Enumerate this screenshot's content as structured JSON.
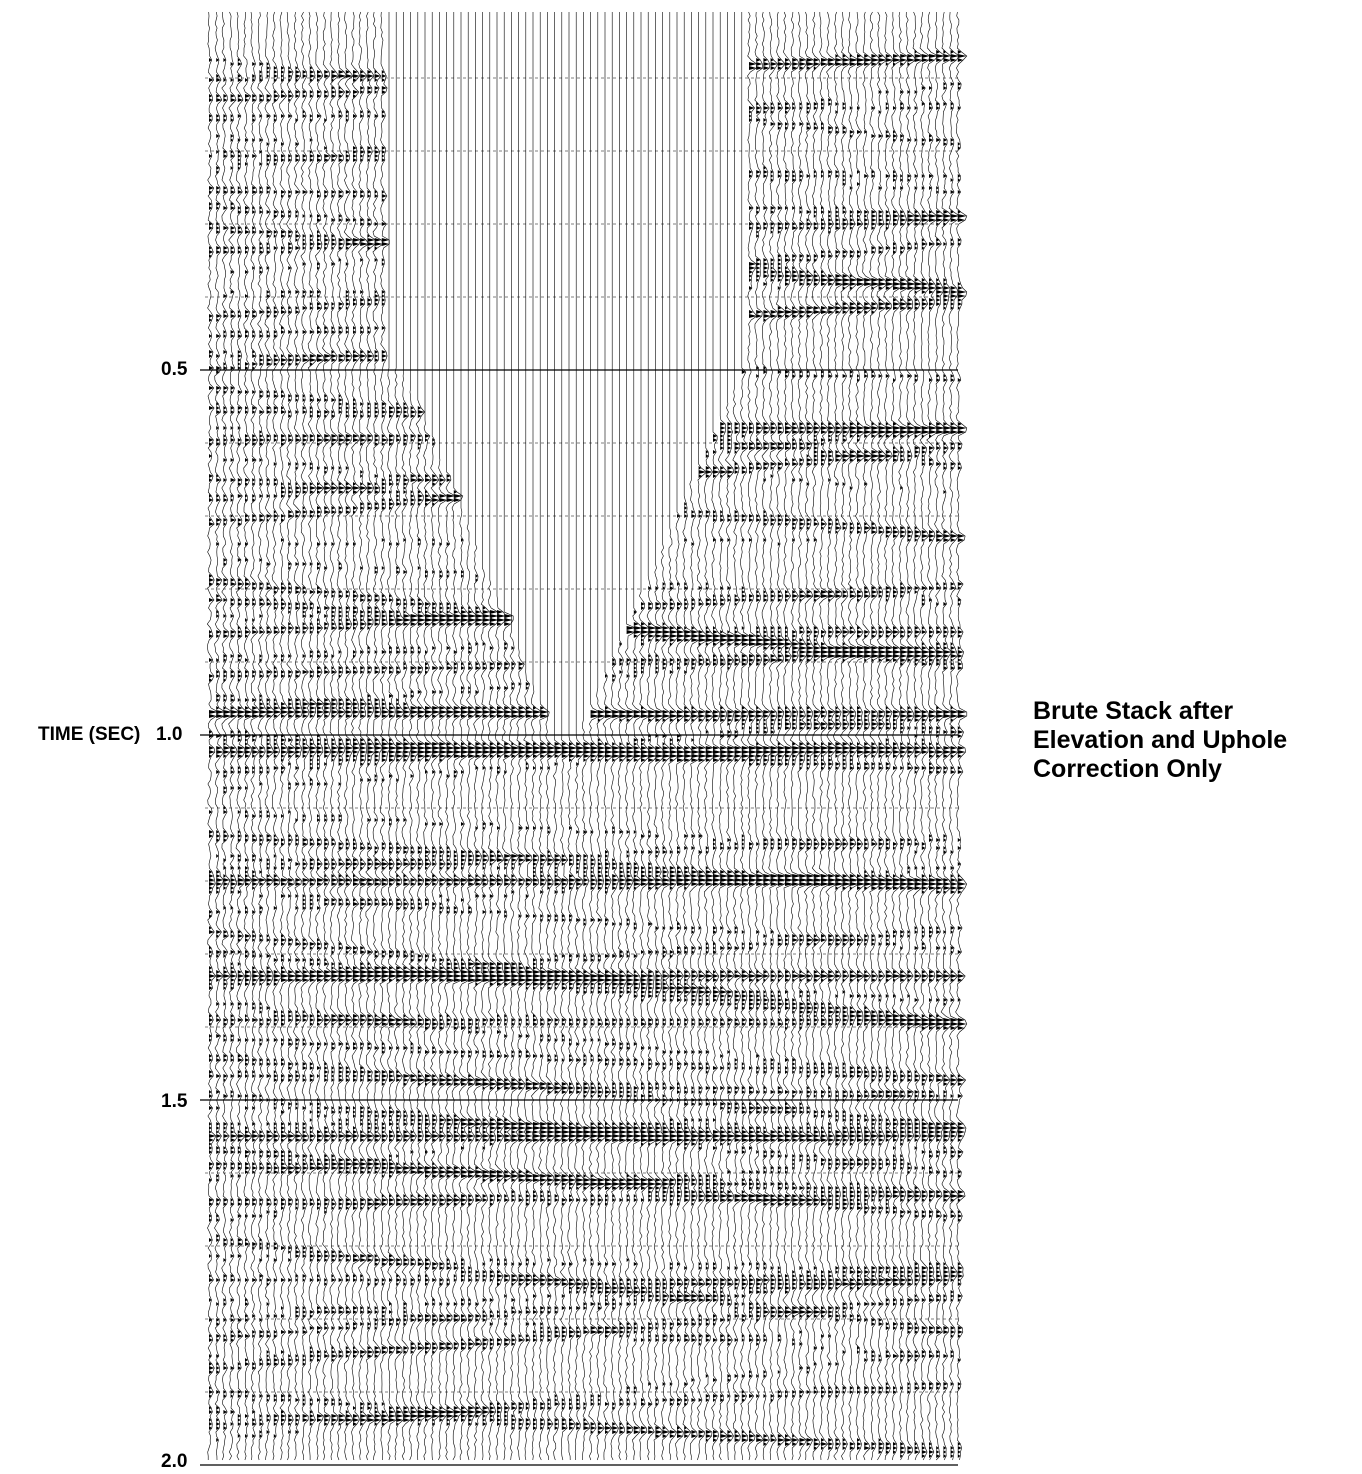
{
  "figure": {
    "axis_label": "TIME (SEC)",
    "ticks": [
      "0.5",
      "1.0",
      "1.5",
      "2.0"
    ],
    "tick_values": [
      0.5,
      1.0,
      1.5,
      2.0
    ],
    "caption_lines": [
      "Brute Stack after",
      "Elevation and Uphole",
      "Correction Only"
    ],
    "colors": {
      "ink": "#000000",
      "paper": "#ffffff"
    }
  }
}
